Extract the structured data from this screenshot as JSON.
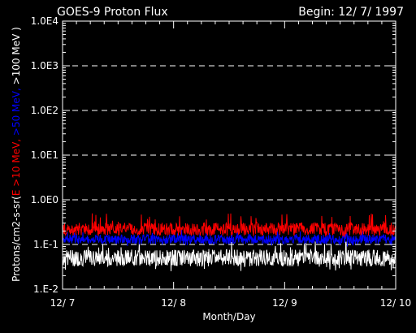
{
  "chart_data": {
    "type": "line",
    "title": "GOES-9 Proton Flux",
    "begin_label": "Begin: 12/ 7/ 1997",
    "xlabel": "Month/Day",
    "ylabel_parts": [
      {
        "text": "Protons/cm2-s-sr(",
        "color": "#ffffff"
      },
      {
        "text": "E >10 MeV, ",
        "color": "#ff0000"
      },
      {
        "text": ">50 MeV, ",
        "color": "#0000ff"
      },
      {
        "text": ">100 MeV )",
        "color": "#ffffff"
      }
    ],
    "yscale": "log",
    "ylim": [
      0.01,
      10000
    ],
    "ytick_labels": [
      "1.E-2",
      "1.E-1",
      "1.0E0",
      "1.0E1",
      "1.0E2",
      "1.0E3",
      "1.0E4"
    ],
    "ytick_values": [
      0.01,
      0.1,
      1,
      10,
      100,
      1000,
      10000
    ],
    "xlim_days": [
      0,
      3
    ],
    "xtick_labels": [
      "12/ 7",
      "12/ 8",
      "12/ 9",
      "12/ 10"
    ],
    "xtick_days": [
      0,
      1,
      2,
      3
    ],
    "grid": "dashed-horizontal",
    "background_color": "#000000",
    "foreground_color": "#ffffff",
    "series": [
      {
        "name": "E >10 MeV",
        "color": "#ff0000",
        "typical": 0.22,
        "range": [
          0.15,
          0.5
        ]
      },
      {
        "name": ">50 MeV",
        "color": "#0000ff",
        "typical": 0.13,
        "range": [
          0.09,
          0.22
        ]
      },
      {
        "name": ">100 MeV",
        "color": "#ffffff",
        "typical": 0.05,
        "range": [
          0.025,
          0.12
        ]
      }
    ]
  }
}
